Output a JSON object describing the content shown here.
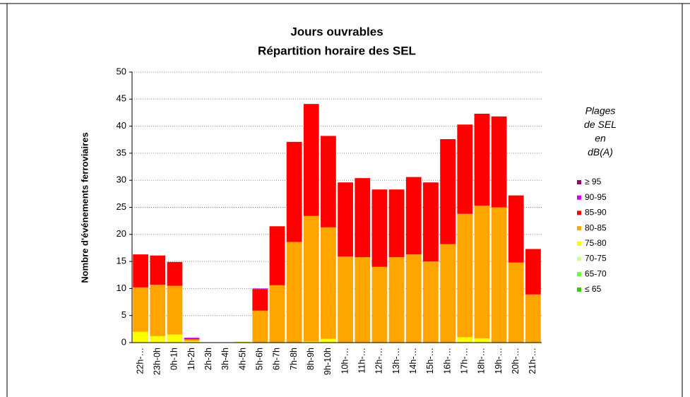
{
  "chart_data": {
    "type": "stacked_bar",
    "title": "Jours ouvrables",
    "subtitle": "Répartition horaire des SEL",
    "y_label": "Nombre d'événements ferroviaires",
    "legend_title": [
      "Plages",
      "de SEL",
      "en",
      "dB(A)"
    ],
    "legend": "right",
    "grid": true,
    "categories": [
      "22h-…",
      "23h-0h",
      "0h-1h",
      "1h-2h",
      "2h-3h",
      "3h-4h",
      "4h-5h",
      "5h-6h",
      "6h-7h",
      "7h-8h",
      "8h-9h",
      "9h-10h",
      "10h-…",
      "11h-…",
      "12h-…",
      "13h-…",
      "14h-…",
      "15h-…",
      "16h-…",
      "17h-…",
      "18h-…",
      "19h-…",
      "20h-…",
      "21h-…"
    ],
    "ylim": [
      0,
      50
    ],
    "yticks": [
      0,
      5,
      10,
      15,
      20,
      25,
      30,
      35,
      40,
      45,
      50
    ],
    "series": [
      {
        "name": "≤  65",
        "color": "#33cc00",
        "values": [
          0,
          0,
          0,
          0,
          0,
          0,
          0,
          0,
          0,
          0,
          0,
          0,
          0,
          0,
          0,
          0,
          0,
          0,
          0,
          0,
          0,
          0,
          0,
          0
        ]
      },
      {
        "name": "65-70",
        "color": "#66ff33",
        "values": [
          0,
          0,
          0,
          0,
          0,
          0,
          0,
          0,
          0,
          0,
          0,
          0,
          0,
          0,
          0,
          0,
          0,
          0,
          0,
          0,
          0,
          0,
          0,
          0
        ]
      },
      {
        "name": "70-75",
        "color": "#ccff99",
        "values": [
          0,
          0,
          0,
          0,
          0,
          0,
          0,
          0,
          0,
          0,
          0,
          0,
          0,
          0,
          0,
          0,
          0,
          0,
          0,
          0,
          0,
          0,
          0,
          0
        ]
      },
      {
        "name": "75-80",
        "color": "#ffff00",
        "values": [
          2,
          1.2,
          1.5,
          0.3,
          0,
          0,
          0.2,
          0,
          0,
          0,
          0.2,
          0.7,
          0,
          0,
          0,
          0,
          0,
          0,
          0,
          1,
          0.8,
          0,
          0,
          0
        ]
      },
      {
        "name": "80-85",
        "color": "#ffa500",
        "values": [
          8.2,
          9.5,
          9,
          0.3,
          0,
          0,
          0,
          5.9,
          10.6,
          18.6,
          23.2,
          20.6,
          15.9,
          15.8,
          14,
          15.8,
          16.3,
          15,
          18.2,
          22.8,
          24.5,
          25,
          14.8,
          8.9
        ]
      },
      {
        "name": "85-90",
        "color": "#ff0000",
        "values": [
          6.1,
          5.4,
          4.4,
          0.2,
          0,
          0,
          0,
          4,
          10.9,
          18.5,
          20.7,
          16.9,
          13.7,
          14.6,
          14.3,
          12.5,
          14.3,
          14.6,
          19.4,
          16.5,
          17,
          16.8,
          12.4,
          8.4
        ]
      },
      {
        "name": "90-95",
        "color": "#cc00ff",
        "values": [
          0,
          0,
          0,
          0.1,
          0,
          0,
          0,
          0.1,
          0,
          0,
          0,
          0,
          0,
          0,
          0,
          0,
          0,
          0,
          0,
          0,
          0,
          0,
          0,
          0
        ]
      },
      {
        "name": "≥ 95",
        "color": "#990066",
        "values": [
          0,
          0,
          0,
          0,
          0,
          0,
          0,
          0,
          0,
          0,
          0,
          0,
          0,
          0,
          0,
          0,
          0,
          0,
          0,
          0,
          0,
          0,
          0,
          0
        ]
      }
    ]
  }
}
